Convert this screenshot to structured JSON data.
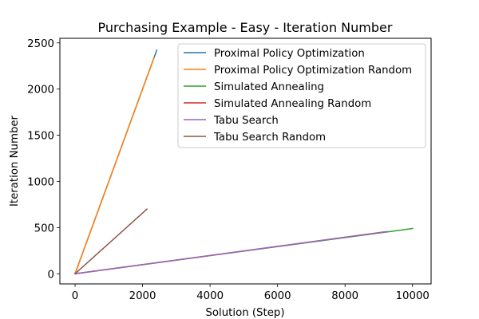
{
  "chart_data": {
    "type": "line",
    "title": "Purchasing Example - Easy - Iteration Number",
    "xlabel": "Solution (Step)",
    "ylabel": "Iteration Number",
    "xlim": [
      -450,
      10550
    ],
    "ylim": [
      -110,
      2550
    ],
    "xticks": [
      0,
      2000,
      4000,
      6000,
      8000,
      10000
    ],
    "yticks": [
      0,
      500,
      1000,
      1500,
      2000,
      2500
    ],
    "grid": false,
    "legend_position": "top-right",
    "series": [
      {
        "name": "Proximal Policy Optimization",
        "color": "#1f77b4",
        "x": [
          0,
          2420
        ],
        "y": [
          0,
          2420
        ]
      },
      {
        "name": "Proximal Policy Optimization Random",
        "color": "#ff7f0e",
        "x": [
          0,
          2340
        ],
        "y": [
          0,
          2340
        ]
      },
      {
        "name": "Simulated Annealing",
        "color": "#2ca02c",
        "x": [
          0,
          10000
        ],
        "y": [
          0,
          490
        ]
      },
      {
        "name": "Simulated Annealing Random",
        "color": "#d62728",
        "x": [
          0,
          9200
        ],
        "y": [
          0,
          455
        ]
      },
      {
        "name": "Tabu Search",
        "color": "#9467bd",
        "x": [
          0,
          9250
        ],
        "y": [
          0,
          457
        ]
      },
      {
        "name": "Tabu Search Random",
        "color": "#8c564b",
        "x": [
          0,
          2130
        ],
        "y": [
          0,
          700
        ]
      }
    ]
  }
}
